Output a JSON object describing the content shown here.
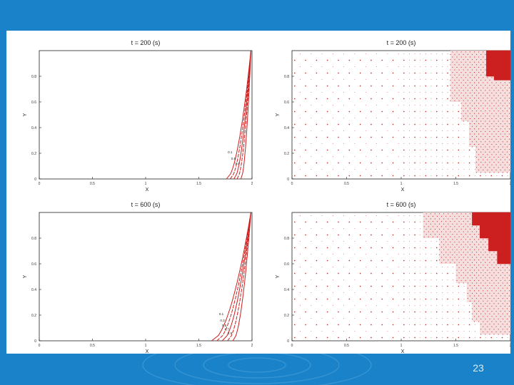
{
  "slide": {
    "page_number": "23",
    "colors": {
      "background": "#1a82c8",
      "content": "#ffffff",
      "series": "#cc1f1f"
    }
  },
  "chart_data": [
    {
      "type": "line",
      "title": "t = 200 (s)",
      "xlabel": "X",
      "ylabel": "Y",
      "xlim": [
        0,
        2
      ],
      "ylim": [
        0,
        1
      ],
      "xticks": [
        "0",
        "0.5",
        "1",
        "1.5",
        "2"
      ],
      "yticks": [
        "0",
        "0.2",
        "0.4",
        "0.6",
        "0.8"
      ],
      "grid": false,
      "series": [
        {
          "name": "0.1",
          "x_bottom": 1.76,
          "x_top": 1.99
        },
        {
          "name": "",
          "x_bottom": 1.795,
          "x_top": 1.99
        },
        {
          "name": "0.5",
          "x_bottom": 1.83,
          "x_top": 1.99
        },
        {
          "name": "",
          "x_bottom": 1.86,
          "x_top": 1.99
        },
        {
          "name": "0.9",
          "x_bottom": 1.895,
          "x_top": 1.99
        }
      ],
      "contour_labels": [
        "0.1",
        "0.5",
        "0.9"
      ]
    },
    {
      "type": "scatter",
      "title": "t = 200 (s)",
      "xlabel": "X",
      "ylabel": "Y",
      "xlim": [
        0,
        2
      ],
      "ylim": [
        0,
        1
      ],
      "xticks": [
        "0",
        "0.5",
        "1",
        "1.5",
        "2"
      ],
      "yticks": [
        "0",
        "0.2",
        "0.4",
        "0.6",
        "0.8"
      ],
      "grid": false,
      "filled_region": [
        [
          1.78,
          1
        ],
        [
          1.78,
          0.8
        ],
        [
          1.85,
          0.8
        ],
        [
          1.85,
          0.77
        ],
        [
          2,
          0.77
        ],
        [
          2,
          1
        ]
      ],
      "refined_region": [
        [
          1.45,
          1
        ],
        [
          1.45,
          0.6
        ],
        [
          1.55,
          0.6
        ],
        [
          1.55,
          0.45
        ],
        [
          1.62,
          0.45
        ],
        [
          1.62,
          0.25
        ],
        [
          1.68,
          0.25
        ],
        [
          1.68,
          0.05
        ],
        [
          2,
          0.05
        ],
        [
          2,
          1
        ]
      ]
    },
    {
      "type": "line",
      "title": "t = 600 (s)",
      "xlabel": "X",
      "ylabel": "Y",
      "xlim": [
        0,
        2
      ],
      "ylim": [
        0,
        1
      ],
      "xticks": [
        "0",
        "0.5",
        "1",
        "1.5",
        "2"
      ],
      "yticks": [
        "0",
        "0.2",
        "0.4",
        "0.6",
        "0.8"
      ],
      "grid": false,
      "series": [
        {
          "name": "0.1",
          "x_bottom": 1.62,
          "x_top": 1.99
        },
        {
          "name": "0.3",
          "x_bottom": 1.67,
          "x_top": 1.99
        },
        {
          "name": "0.5",
          "x_bottom": 1.72,
          "x_top": 1.99
        },
        {
          "name": "0.7",
          "x_bottom": 1.77,
          "x_top": 1.99
        },
        {
          "name": "0.9",
          "x_bottom": 1.82,
          "x_top": 1.99
        }
      ],
      "contour_labels": [
        "0.1",
        "0.3",
        "0.5",
        "0.7",
        "0.9"
      ]
    },
    {
      "type": "scatter",
      "title": "t = 600 (s)",
      "xlabel": "X",
      "ylabel": "Y",
      "xlim": [
        0,
        2
      ],
      "ylim": [
        0,
        1
      ],
      "xticks": [
        "0",
        "0.5",
        "1",
        "1.5",
        "2"
      ],
      "yticks": [
        "0",
        "0.2",
        "0.4",
        "0.6",
        "0.8"
      ],
      "grid": false,
      "filled_region": [
        [
          1.65,
          1
        ],
        [
          1.65,
          0.9
        ],
        [
          1.72,
          0.9
        ],
        [
          1.72,
          0.8
        ],
        [
          1.8,
          0.8
        ],
        [
          1.8,
          0.7
        ],
        [
          1.88,
          0.7
        ],
        [
          1.88,
          0.6
        ],
        [
          2,
          0.6
        ],
        [
          2,
          1
        ]
      ],
      "refined_region": [
        [
          1.2,
          1
        ],
        [
          1.2,
          0.8
        ],
        [
          1.35,
          0.8
        ],
        [
          1.35,
          0.6
        ],
        [
          1.5,
          0.6
        ],
        [
          1.5,
          0.45
        ],
        [
          1.6,
          0.45
        ],
        [
          1.6,
          0.3
        ],
        [
          1.65,
          0.3
        ],
        [
          1.65,
          0.15
        ],
        [
          1.72,
          0.15
        ],
        [
          1.72,
          0.05
        ],
        [
          2,
          0.05
        ],
        [
          2,
          1
        ]
      ]
    }
  ]
}
